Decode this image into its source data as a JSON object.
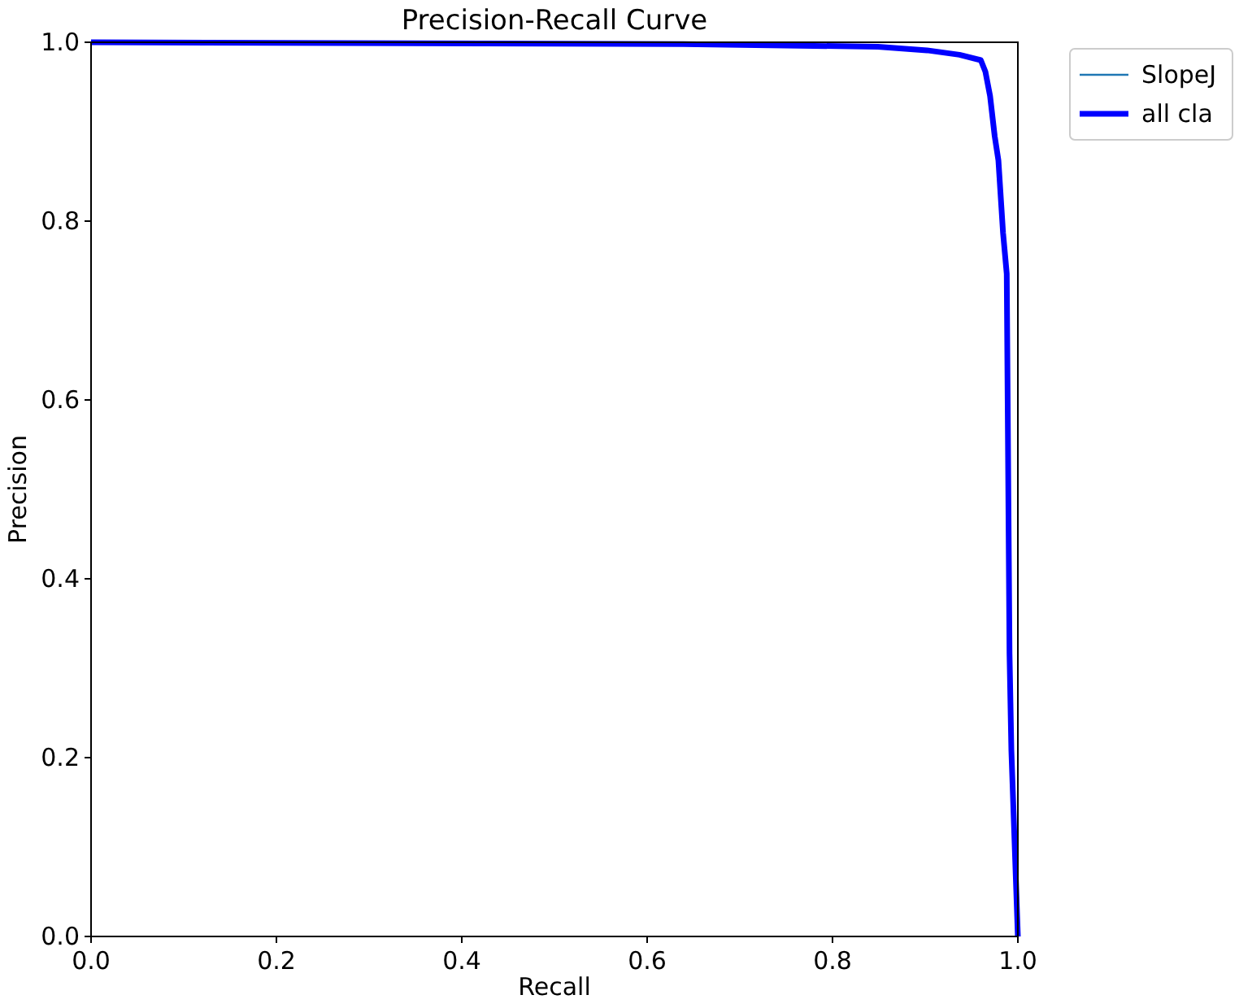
{
  "chart_data": {
    "type": "line",
    "title": "Precision-Recall Curve",
    "xlabel": "Recall",
    "ylabel": "Precision",
    "x": [
      0,
      0.639,
      0.849,
      0.902,
      0.937,
      0.96,
      0.965,
      0.97,
      0.975,
      0.979,
      0.984,
      0.988,
      0.991,
      0.993,
      1.0
    ],
    "series": [
      {
        "name": "SlopeJ",
        "color": "#1f77b4",
        "values": [
          null,
          null,
          null,
          null,
          null,
          null,
          null,
          null,
          null,
          null,
          null,
          null,
          null,
          null,
          null
        ]
      },
      {
        "name": "all cla",
        "color": "#0000ff",
        "values": [
          1.0,
          0.998,
          0.995,
          0.991,
          0.986,
          0.98,
          0.967,
          0.94,
          0.895,
          0.868,
          0.787,
          0.741,
          0.316,
          0.208,
          0
        ]
      }
    ],
    "xlim": [
      0,
      1
    ],
    "ylim": [
      0,
      1
    ],
    "xticks": [
      {
        "value": 0,
        "label": "0.0"
      },
      {
        "value": 0.2,
        "label": "0.2"
      },
      {
        "value": 0.4,
        "label": "0.4"
      },
      {
        "value": 0.6,
        "label": "0.6"
      },
      {
        "value": 0.8,
        "label": "0.8"
      },
      {
        "value": 1,
        "label": "1.0"
      }
    ],
    "yticks": [
      {
        "value": 0,
        "label": "0.0"
      },
      {
        "value": 0.2,
        "label": "0.2"
      },
      {
        "value": 0.4,
        "label": "0.4"
      },
      {
        "value": 0.6,
        "label": "0.6"
      },
      {
        "value": 0.8,
        "label": "0.8"
      },
      {
        "value": 1,
        "label": "1.0"
      }
    ],
    "legend": "top right",
    "grid": false,
    "line_style": "solid",
    "marker": "none"
  }
}
